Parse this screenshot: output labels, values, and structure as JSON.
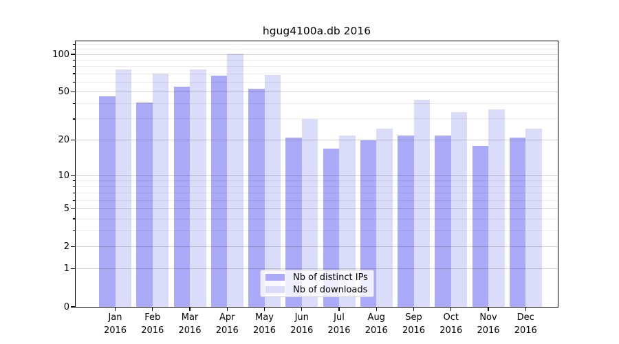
{
  "chart_data": {
    "type": "bar",
    "title": "hgug4100a.db 2016",
    "categories": [
      "Jan",
      "Feb",
      "Mar",
      "Apr",
      "May",
      "Jun",
      "Jul",
      "Aug",
      "Sep",
      "Oct",
      "Nov",
      "Dec"
    ],
    "year_label": "2016",
    "series": [
      {
        "name": "Nb of distinct IPs",
        "color": "#aaaaf8",
        "values": [
          46,
          41,
          55,
          67,
          53,
          21,
          17,
          20,
          22,
          22,
          18,
          21
        ]
      },
      {
        "name": "Nb of downloads",
        "color": "#dbdbfa",
        "values": [
          76,
          70,
          76,
          101,
          68,
          30,
          22,
          25,
          43,
          34,
          36,
          25
        ]
      }
    ],
    "xlabel": "",
    "ylabel": "",
    "y_scale": "log(1+y)",
    "ylim": [
      0,
      127
    ],
    "y_tick_labels": [
      "100",
      "50",
      "20",
      "10",
      "5",
      "2",
      "1",
      "0"
    ],
    "y_tick_values": [
      100,
      50,
      20,
      10,
      5,
      2,
      1,
      0
    ],
    "y_major_gridlines": [
      1,
      2,
      5,
      10,
      20,
      50,
      100
    ],
    "y_minor_gridlines": [
      3,
      4,
      6,
      7,
      8,
      9,
      30,
      40,
      60,
      70,
      80,
      90,
      110,
      120
    ],
    "grid": true,
    "legend_position": "lower center",
    "colors": {
      "spine": "#000000",
      "major_grid": "#d2d2d2",
      "minor_grid": "#ededed",
      "legend_border": "#cccccc"
    }
  }
}
